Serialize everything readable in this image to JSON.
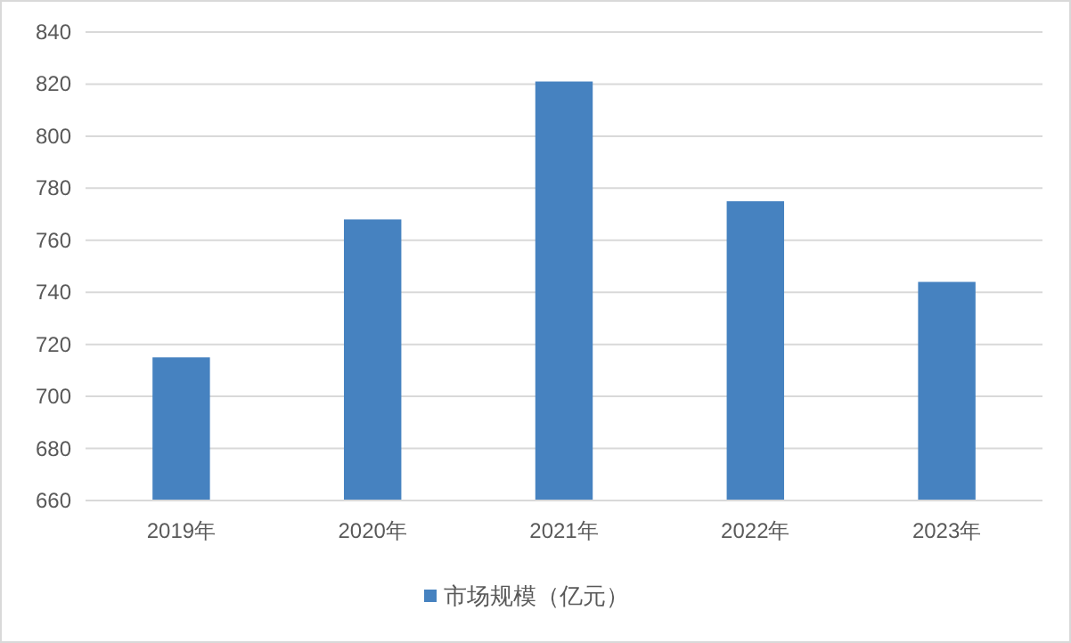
{
  "chart_data": {
    "type": "bar",
    "categories": [
      "2019年",
      "2020年",
      "2021年",
      "2022年",
      "2023年"
    ],
    "series": [
      {
        "name": "市场规模（亿元）",
        "color": "#4682c0",
        "values": [
          715,
          768,
          821,
          775,
          744
        ]
      }
    ],
    "ylim": [
      660,
      840
    ],
    "yticks": [
      660,
      680,
      700,
      720,
      740,
      760,
      780,
      800,
      820,
      840
    ],
    "grid": "y",
    "legend": "bottom"
  }
}
